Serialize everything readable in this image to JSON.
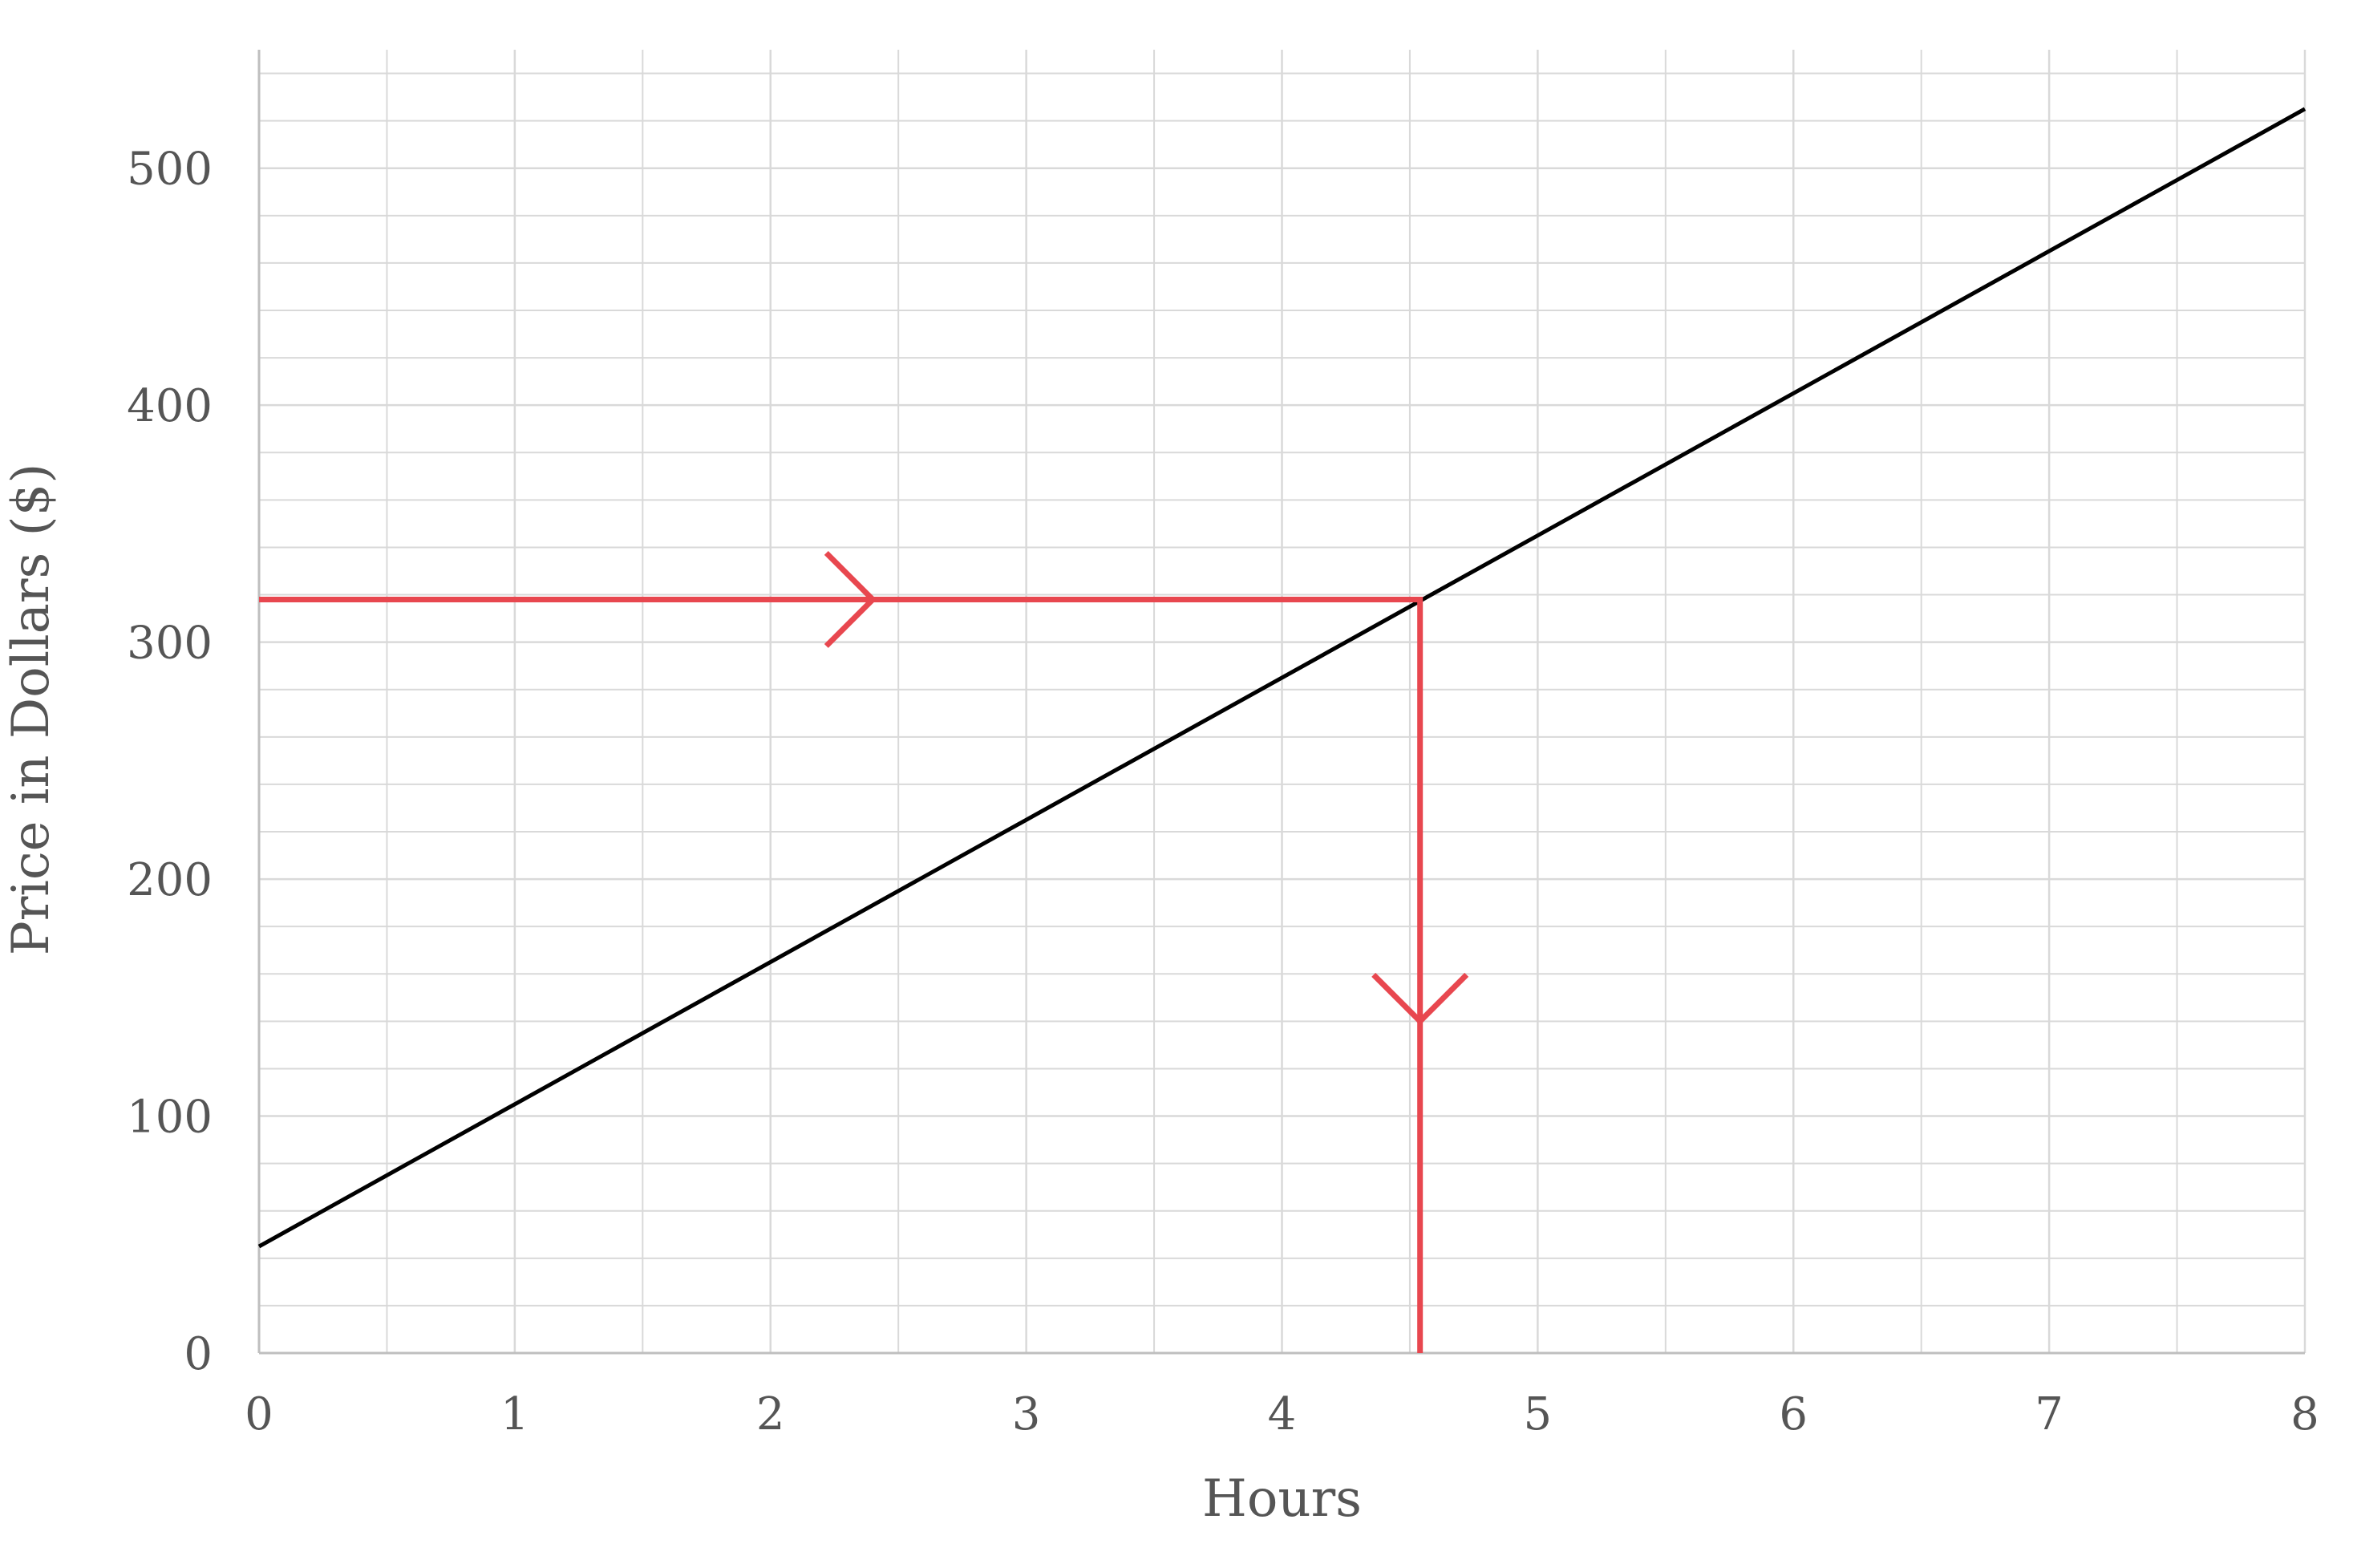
{
  "chart_data": {
    "type": "line",
    "title": "",
    "xlabel": "Hours",
    "ylabel": "Price in Dollars  ($)",
    "xlim": [
      0,
      8
    ],
    "ylim": [
      0,
      550
    ],
    "x_ticks": [
      0,
      1,
      2,
      3,
      4,
      5,
      6,
      7,
      8
    ],
    "y_ticks": [
      0,
      100,
      200,
      300,
      400,
      500
    ],
    "x_minor_step": 0.5,
    "y_minor_step": 20,
    "grid": true,
    "legend": "none",
    "series": [
      {
        "x": [
          0,
          8
        ],
        "y": [
          45,
          525
        ],
        "color": "#000000"
      }
    ],
    "annotation": {
      "type": "read-off arrows",
      "color": "#e8474f",
      "price": 318,
      "hours": 4.54,
      "from": [
        0,
        318
      ],
      "corner": [
        4.54,
        318
      ],
      "to": [
        4.54,
        0
      ],
      "arrow_points": [
        [
          2.4,
          318
        ],
        [
          4.54,
          140
        ]
      ]
    },
    "colors": {
      "grid": "#d9d9d9",
      "axis": "#bfbfbf",
      "text": "#555555"
    }
  }
}
